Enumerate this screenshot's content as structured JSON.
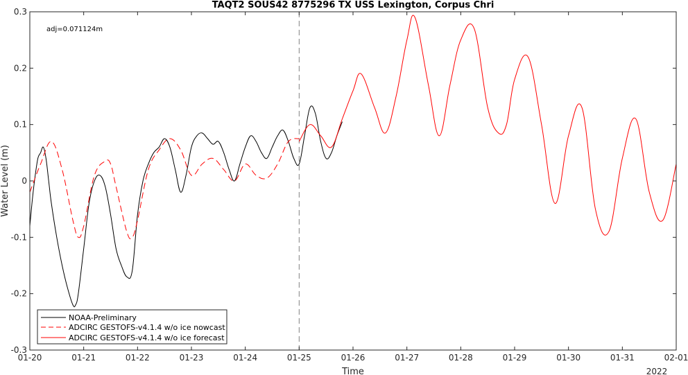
{
  "chart_data": {
    "type": "line",
    "title": "TAQT2 SOUS42 8775296 TX USS Lexington, Corpus Chri",
    "xlabel": "Time",
    "ylabel": "Water Level (m)",
    "ylim": [
      -0.3,
      0.3
    ],
    "xlim": [
      0,
      12
    ],
    "x_unit": "days since 2022-01-20",
    "x_ticks": [
      0,
      1,
      2,
      3,
      4,
      5,
      6,
      7,
      8,
      9,
      10,
      11,
      12
    ],
    "x_tick_labels": [
      "01-20",
      "01-21",
      "01-22",
      "01-23",
      "01-24",
      "01-25",
      "01-26",
      "01-27",
      "01-28",
      "01-29",
      "01-30",
      "01-31",
      "02-01"
    ],
    "x_year_label": "2022",
    "y_ticks": [
      -0.3,
      -0.2,
      -0.1,
      0,
      0.1,
      0.2,
      0.3
    ],
    "y_tick_labels": [
      "-0.3",
      "-0.2",
      "-0.1",
      "0",
      "0.1",
      "0.2",
      "0.3"
    ],
    "nowcast_forecast_split": 5,
    "annotation": "adj=0.071124m",
    "legend_position": "bottom-left",
    "series": [
      {
        "name": "NOAA-Preliminary",
        "color": "#000000",
        "style": "solid",
        "x": [
          0.0,
          0.05,
          0.1,
          0.15,
          0.2,
          0.25,
          0.3,
          0.35,
          0.4,
          0.5,
          0.6,
          0.7,
          0.8,
          0.85,
          0.9,
          1.0,
          1.1,
          1.2,
          1.3,
          1.4,
          1.5,
          1.6,
          1.7,
          1.8,
          1.9,
          2.0,
          2.1,
          2.2,
          2.3,
          2.4,
          2.5,
          2.6,
          2.7,
          2.8,
          2.9,
          3.0,
          3.1,
          3.2,
          3.3,
          3.4,
          3.5,
          3.6,
          3.7,
          3.8,
          3.9,
          4.0,
          4.1,
          4.2,
          4.3,
          4.4,
          4.5,
          4.6,
          4.7,
          4.8,
          4.9,
          5.0,
          5.1,
          5.2,
          5.3,
          5.4,
          5.5,
          5.6,
          5.7,
          5.8
        ],
        "y": [
          -0.08,
          -0.03,
          0.01,
          0.04,
          0.05,
          0.06,
          0.04,
          0.0,
          -0.04,
          -0.1,
          -0.15,
          -0.19,
          -0.22,
          -0.22,
          -0.2,
          -0.12,
          -0.04,
          0.0,
          0.01,
          -0.01,
          -0.06,
          -0.12,
          -0.15,
          -0.17,
          -0.16,
          -0.06,
          0.0,
          0.03,
          0.05,
          0.06,
          0.075,
          0.06,
          0.02,
          -0.02,
          0.01,
          0.06,
          0.08,
          0.085,
          0.075,
          0.065,
          0.07,
          0.05,
          0.02,
          0.0,
          0.03,
          0.06,
          0.08,
          0.07,
          0.05,
          0.04,
          0.06,
          0.08,
          0.09,
          0.07,
          0.04,
          0.03,
          0.08,
          0.13,
          0.12,
          0.07,
          0.04,
          0.05,
          0.08,
          0.105
        ]
      },
      {
        "name": "ADCIRC GESTOFS-v4.1.4 w/o ice nowcast",
        "color": "#ff0000",
        "style": "dashed",
        "x": [
          0.0,
          0.2,
          0.4,
          0.6,
          0.8,
          0.9,
          1.0,
          1.2,
          1.4,
          1.5,
          1.6,
          1.8,
          1.9,
          2.0,
          2.2,
          2.4,
          2.6,
          2.8,
          3.0,
          3.2,
          3.4,
          3.6,
          3.8,
          4.0,
          4.2,
          4.4,
          4.6,
          4.8,
          5.0
        ],
        "y": [
          -0.02,
          0.03,
          0.07,
          0.02,
          -0.07,
          -0.1,
          -0.08,
          0.01,
          0.035,
          0.03,
          -0.01,
          -0.09,
          -0.1,
          -0.07,
          0.02,
          0.055,
          0.075,
          0.055,
          0.01,
          0.03,
          0.04,
          0.02,
          0.0,
          0.03,
          0.01,
          0.005,
          0.03,
          0.07,
          0.075
        ]
      },
      {
        "name": "ADCIRC GESTOFS-v4.1.4 w/o ice forecast",
        "color": "#ff0000",
        "style": "solid",
        "x": [
          5.0,
          5.2,
          5.4,
          5.6,
          5.8,
          6.0,
          6.15,
          6.4,
          6.6,
          6.8,
          7.0,
          7.15,
          7.4,
          7.6,
          7.8,
          8.0,
          8.25,
          8.5,
          8.7,
          8.85,
          9.0,
          9.25,
          9.5,
          9.75,
          10.0,
          10.25,
          10.5,
          10.75,
          11.0,
          11.25,
          11.5,
          11.75,
          12.0
        ],
        "y": [
          0.07,
          0.1,
          0.08,
          0.06,
          0.11,
          0.16,
          0.19,
          0.13,
          0.085,
          0.15,
          0.25,
          0.29,
          0.17,
          0.08,
          0.17,
          0.25,
          0.27,
          0.13,
          0.085,
          0.1,
          0.18,
          0.22,
          0.1,
          -0.04,
          0.08,
          0.13,
          -0.05,
          -0.09,
          0.04,
          0.11,
          -0.02,
          -0.07,
          0.03
        ]
      }
    ]
  }
}
